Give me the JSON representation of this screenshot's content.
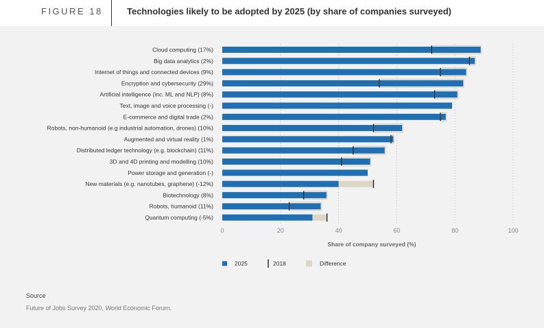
{
  "figure": {
    "number": "FIGURE 18",
    "title": "Technologies likely to be adopted by 2025 (by share of companies surveyed)"
  },
  "source": {
    "label": "Source",
    "text": "Future of Jobs Survey 2020, World Economic Forum."
  },
  "colors": {
    "bar_2025": "#1f6fb2",
    "marker_2018": "#222222",
    "difference": "#dcd6c6",
    "grid": "#c8c8c8"
  },
  "chart_data": {
    "type": "bar",
    "orientation": "horizontal",
    "xlabel": "Share of company surveyed (%)",
    "xlim": [
      0,
      100
    ],
    "xticks": [
      0,
      20,
      40,
      60,
      80,
      100
    ],
    "grid": "vertical dotted",
    "legend": [
      {
        "key": "2025",
        "label": "2025"
      },
      {
        "key": "2018",
        "label": "2018"
      },
      {
        "key": "difference",
        "label": "Difference"
      }
    ],
    "legend_position": "bottom",
    "categories": [
      "Cloud computing (17%)",
      "Big data analytics (2%)",
      "Internet of things and connected devices (9%)",
      "Encryption and cybersecurity (29%)",
      "Artificial intelligence (inc. ML and NLP) (8%)",
      "Text, image and voice processing (-)",
      "E-commerce and digital trade (2%)",
      "Robots, non-humanoid (e.g industrial automation, drones) (10%)",
      "Augmented and virtual reality (1%)",
      "Distributed ledger technology (e.g. blockchain) (11%)",
      "3D and 4D printing and modelling (10%)",
      "Power storage and generation (-)",
      "New materials (e.g. nanotubes, graphene) (-12%)",
      "Biotechnology (8%)",
      "Robots, humanoid (11%)",
      "Quantum computing (-5%)"
    ],
    "series": [
      {
        "name": "2025",
        "values": [
          89,
          87,
          84,
          83,
          81,
          79,
          77,
          62,
          59,
          56,
          51,
          50,
          40,
          36,
          34,
          31
        ]
      },
      {
        "name": "2018",
        "values": [
          72,
          85,
          75,
          54,
          73,
          null,
          75,
          52,
          58,
          45,
          41,
          null,
          52,
          28,
          23,
          36
        ]
      }
    ]
  }
}
